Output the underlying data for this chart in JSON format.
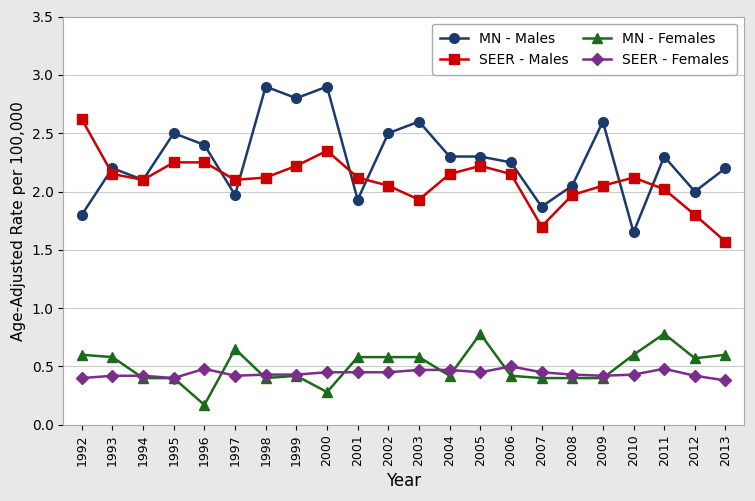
{
  "years": [
    1992,
    1993,
    1994,
    1995,
    1996,
    1997,
    1998,
    1999,
    2000,
    2001,
    2002,
    2003,
    2004,
    2005,
    2006,
    2007,
    2008,
    2009,
    2010,
    2011,
    2012,
    2013
  ],
  "mn_males": [
    1.8,
    2.2,
    2.1,
    2.5,
    2.4,
    1.97,
    2.9,
    2.8,
    2.9,
    1.93,
    2.5,
    2.6,
    2.3,
    2.3,
    2.25,
    1.87,
    2.05,
    2.6,
    1.65,
    2.3,
    2.0,
    2.2
  ],
  "seer_males": [
    2.62,
    2.15,
    2.1,
    2.25,
    2.25,
    2.1,
    2.12,
    2.22,
    2.35,
    2.12,
    2.05,
    1.93,
    2.15,
    2.22,
    2.15,
    1.7,
    1.97,
    2.05,
    2.12,
    2.02,
    1.8,
    1.57
  ],
  "mn_females": [
    0.6,
    0.58,
    0.4,
    0.4,
    0.17,
    0.65,
    0.4,
    0.42,
    0.28,
    0.58,
    0.58,
    0.58,
    0.42,
    0.78,
    0.42,
    0.4,
    0.4,
    0.4,
    0.6,
    0.78,
    0.57,
    0.6
  ],
  "seer_females": [
    0.4,
    0.42,
    0.42,
    0.4,
    0.48,
    0.42,
    0.43,
    0.43,
    0.45,
    0.45,
    0.45,
    0.47,
    0.47,
    0.45,
    0.5,
    0.45,
    0.43,
    0.42,
    0.43,
    0.48,
    0.42,
    0.38
  ],
  "mn_males_color": "#1a3a6b",
  "seer_males_color": "#cc0000",
  "mn_females_color": "#1a6b1a",
  "seer_females_color": "#7b2d8b",
  "xlabel": "Year",
  "ylabel": "Age-Adjusted Rate per 100,000",
  "ylim": [
    0.0,
    3.5
  ],
  "yticks": [
    0.0,
    0.5,
    1.0,
    1.5,
    2.0,
    2.5,
    3.0,
    3.5
  ],
  "bg_color": "#ffffff",
  "outer_bg": "#e8e8e8",
  "grid_color": "#cccccc",
  "legend_labels": [
    "MN - Males",
    "SEER - Males",
    "MN - Females",
    "SEER - Females"
  ]
}
